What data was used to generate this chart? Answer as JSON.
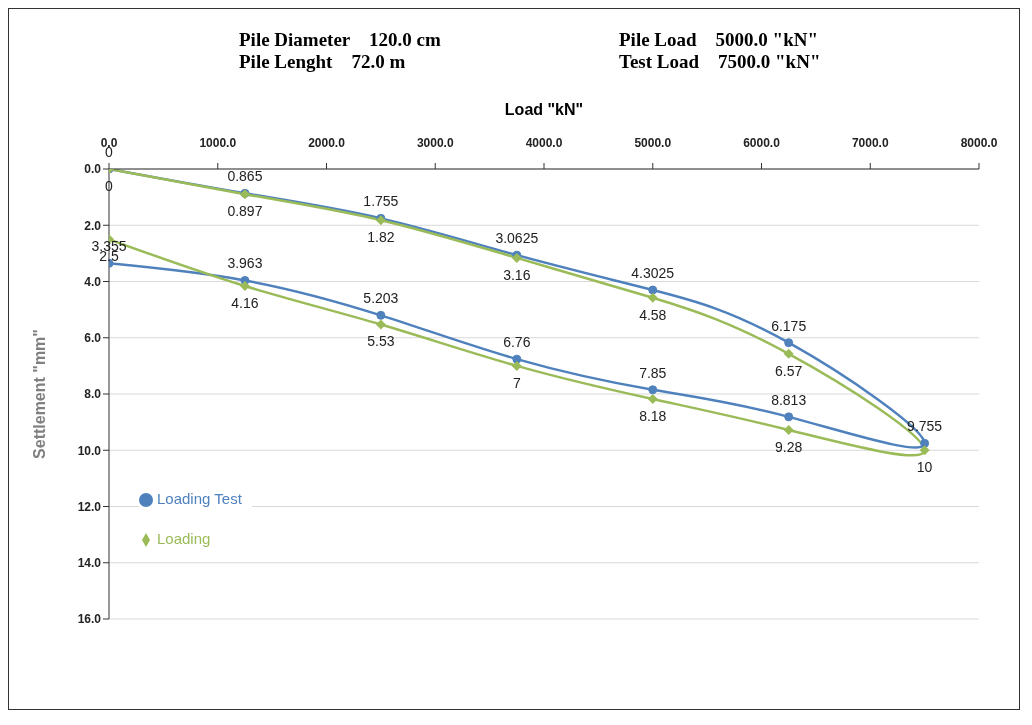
{
  "chart_data": {
    "type": "line",
    "annotations": [
      "Pile Diameter    120.0 cm",
      "Pile Lenght    72.0 m",
      "Pile Load    5000.0 \"kN\"",
      "Test Load    7500.0 \"kN\""
    ],
    "xlabel": "Load \"kN\"",
    "ylabel": "Settlement \"mm\"",
    "xlim": [
      0,
      8000
    ],
    "xticks": [
      {
        "value": 0,
        "label": "0.0"
      },
      {
        "value": 1000,
        "label": "1000.0"
      },
      {
        "value": 2000,
        "label": "2000.0"
      },
      {
        "value": 3000,
        "label": "3000.0"
      },
      {
        "value": 4000,
        "label": "4000.0"
      },
      {
        "value": 5000,
        "label": "5000.0"
      },
      {
        "value": 6000,
        "label": "6000.0"
      },
      {
        "value": 7000,
        "label": "7000.0"
      },
      {
        "value": 8000,
        "label": "8000.0"
      }
    ],
    "ylim": [
      16,
      0
    ],
    "yticks": [
      {
        "value": 0,
        "label": "0.0"
      },
      {
        "value": 2,
        "label": "2.0"
      },
      {
        "value": 4,
        "label": "4.0"
      },
      {
        "value": 6,
        "label": "6.0"
      },
      {
        "value": 8,
        "label": "8.0"
      },
      {
        "value": 10,
        "label": "10.0"
      },
      {
        "value": 12,
        "label": "12.0"
      },
      {
        "value": 14,
        "label": "14.0"
      },
      {
        "value": 16,
        "label": "16.0"
      }
    ],
    "grid": "y",
    "legend": "bottom left",
    "data_labels": true,
    "line_style": "solid",
    "series": [
      {
        "name": "Loading Test",
        "color": "#4f81bd",
        "marker": "circle",
        "x": [
          0,
          1250,
          2500,
          3750,
          5000,
          6250,
          7500,
          6250,
          5000,
          3750,
          2500,
          1250,
          0
        ],
        "values": [
          0,
          0.865,
          1.755,
          3.0625,
          4.3025,
          6.175,
          9.755,
          8.813,
          7.85,
          6.76,
          5.203,
          3.963,
          3.355
        ]
      },
      {
        "name": "Loading",
        "color": "#9bbb59",
        "marker": "diamond",
        "x": [
          0,
          1250,
          2500,
          3750,
          5000,
          6250,
          7500,
          6250,
          5000,
          3750,
          2500,
          1250,
          0
        ],
        "values": [
          0,
          0.897,
          1.82,
          3.16,
          4.58,
          6.57,
          10,
          9.28,
          8.18,
          7,
          5.53,
          4.16,
          2.5
        ]
      }
    ]
  }
}
